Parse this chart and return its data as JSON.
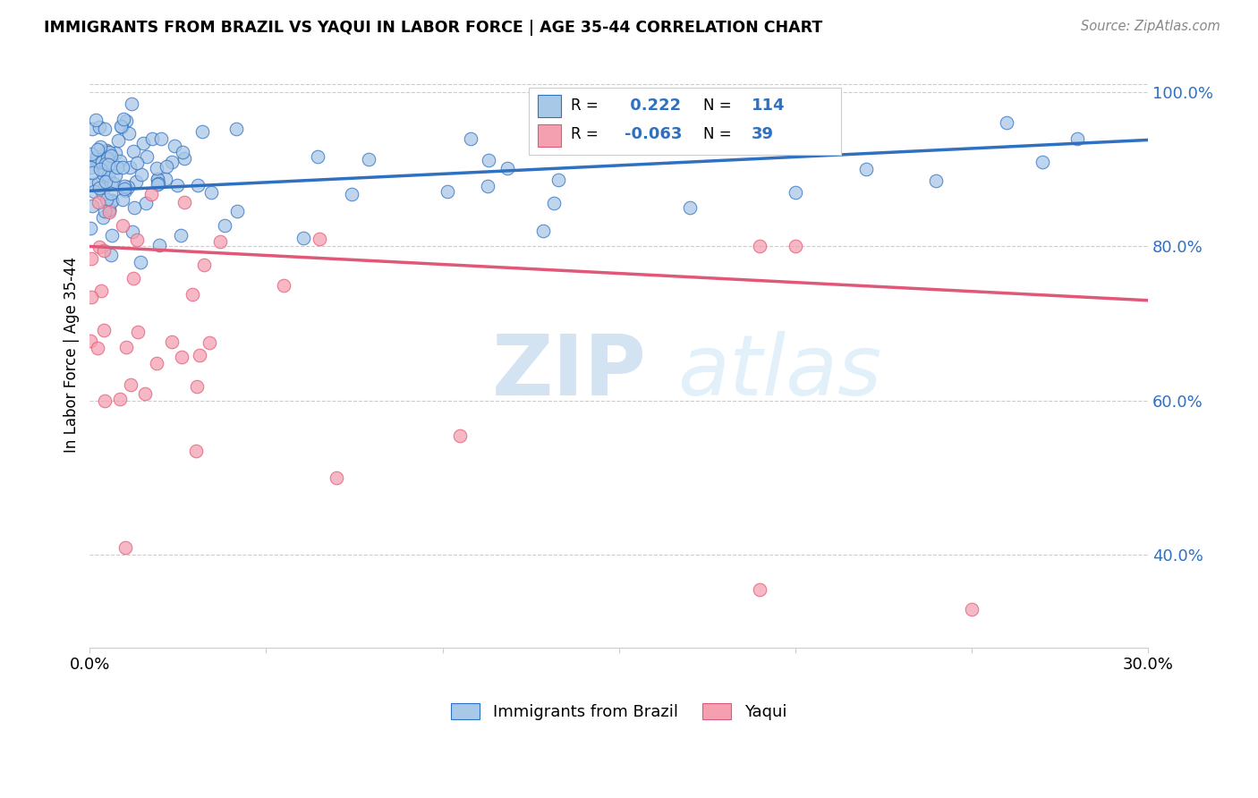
{
  "title": "IMMIGRANTS FROM BRAZIL VS YAQUI IN LABOR FORCE | AGE 35-44 CORRELATION CHART",
  "source": "Source: ZipAtlas.com",
  "ylabel": "In Labor Force | Age 35-44",
  "xmin": 0.0,
  "xmax": 0.3,
  "ymin": 0.28,
  "ymax": 1.04,
  "brazil_R": 0.222,
  "brazil_N": 114,
  "yaqui_R": -0.063,
  "yaqui_N": 39,
  "brazil_color": "#a8c8e8",
  "yaqui_color": "#f4a0b0",
  "brazil_line_color": "#3070c0",
  "yaqui_line_color": "#e05878",
  "legend_label_brazil": "Immigrants from Brazil",
  "legend_label_yaqui": "Yaqui",
  "watermark_zip": "ZIP",
  "watermark_atlas": "atlas",
  "brazil_trend_y0": 0.872,
  "brazil_trend_y1": 0.938,
  "yaqui_trend_y0": 0.8,
  "yaqui_trend_y1": 0.73,
  "gridline_y": [
    0.4,
    0.6,
    0.8,
    1.0
  ],
  "x_tick_labels": [
    "0.0%",
    "",
    "",
    "",
    "",
    "",
    "30.0%"
  ],
  "y_tick_labels_right": [
    "40.0%",
    "60.0%",
    "80.0%",
    "100.0%"
  ]
}
